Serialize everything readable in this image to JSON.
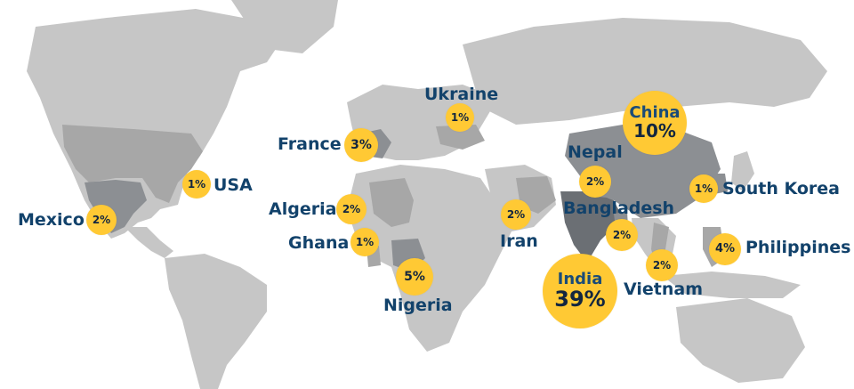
{
  "colors": {
    "ocean": "#ffffff",
    "land": "#c6c6c6",
    "land_dark": "#8c8f93",
    "land_darker": "#6b6f74",
    "bubble": "#ffc934",
    "label_text": "#12426b",
    "value_text": "#13263f"
  },
  "countries": [
    {
      "name": "Mexico",
      "value": "2%"
    },
    {
      "name": "USA",
      "value": "1%"
    },
    {
      "name": "France",
      "value": "3%"
    },
    {
      "name": "Algeria",
      "value": "2%"
    },
    {
      "name": "Ghana",
      "value": "1%"
    },
    {
      "name": "Nigeria",
      "value": "5%"
    },
    {
      "name": "Ukraine",
      "value": "1%"
    },
    {
      "name": "Iran",
      "value": "2%"
    },
    {
      "name": "India",
      "value": "39%"
    },
    {
      "name": "Nepal",
      "value": "2%"
    },
    {
      "name": "Bangladesh",
      "value": "2%"
    },
    {
      "name": "Vietnam",
      "value": "2%"
    },
    {
      "name": "China",
      "value": "10%"
    },
    {
      "name": "South Korea",
      "value": "1%"
    },
    {
      "name": "Philippines",
      "value": "4%"
    }
  ]
}
